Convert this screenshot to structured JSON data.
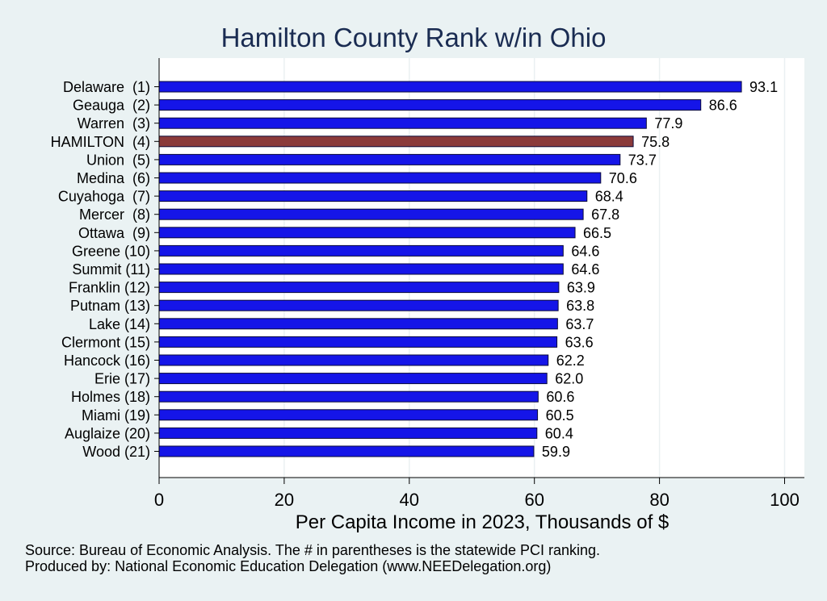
{
  "chart_data": {
    "type": "bar",
    "orientation": "horizontal",
    "title": "Hamilton County Rank w/in Ohio",
    "xlabel": "Per Capita Income in 2023, Thousands of $",
    "ylabel": "",
    "xlim": [
      0,
      100
    ],
    "ticks": [
      0,
      20,
      40,
      60,
      80,
      100
    ],
    "tick_labels": [
      "0",
      "20",
      "40",
      "60",
      "80",
      "100"
    ],
    "grid": true,
    "categories": [
      "Delaware  (1)",
      "Geauga  (2)",
      "Warren  (3)",
      "HAMILTON  (4)",
      "Union  (5)",
      "Medina  (6)",
      "Cuyahoga  (7)",
      "Mercer  (8)",
      "Ottawa  (9)",
      "Greene (10)",
      "Summit (11)",
      "Franklin (12)",
      "Putnam (13)",
      "Lake (14)",
      "Clermont (15)",
      "Hancock (16)",
      "Erie (17)",
      "Holmes (18)",
      "Miami (19)",
      "Auglaize (20)",
      "Wood (21)"
    ],
    "values": [
      93.1,
      86.6,
      77.9,
      75.8,
      73.7,
      70.6,
      68.4,
      67.8,
      66.5,
      64.6,
      64.6,
      63.9,
      63.8,
      63.7,
      63.6,
      62.2,
      62.0,
      60.6,
      60.5,
      60.4,
      59.9
    ],
    "value_labels": [
      "93.1",
      "86.6",
      "77.9",
      "75.8",
      "73.7",
      "70.6",
      "68.4",
      "67.8",
      "66.5",
      "64.6",
      "64.6",
      "63.9",
      "63.8",
      "63.7",
      "63.6",
      "62.2",
      "62.0",
      "60.6",
      "60.5",
      "60.4",
      "59.9"
    ],
    "highlight_index": 3,
    "colors": {
      "bar": "#1515e8",
      "highlight": "#8b3a3a",
      "plot_background": "#ffffff",
      "page_background": "#eaf2f3",
      "title": "#1a2c52"
    }
  },
  "footer": {
    "source": "Source: Bureau of Economic Analysis. The # in parentheses is the statewide PCI ranking.",
    "produced": "Produced by: National Economic Education Delegation (www.NEEDelegation.org)"
  }
}
